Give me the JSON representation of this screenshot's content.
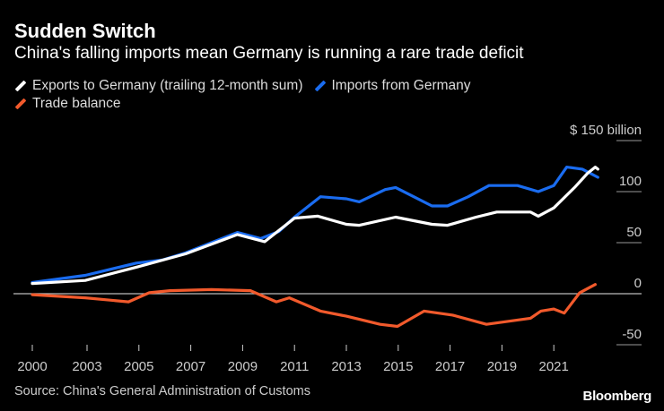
{
  "header": {
    "title": "Sudden Switch",
    "subtitle": "China's falling imports mean Germany is running a rare trade deficit"
  },
  "legend": [
    {
      "label": "Exports to Germany (trailing 12-month sum)",
      "color": "#ffffff"
    },
    {
      "label": "Imports from Germany",
      "color": "#1a6cf0"
    },
    {
      "label": "Trade balance",
      "color": "#f25a2c"
    }
  ],
  "footer": {
    "source": "Source: China's General Administration of Customs",
    "logo": "Bloomberg"
  },
  "chart_data": {
    "type": "line",
    "title": "Sudden Switch",
    "subtitle": "China's falling imports mean Germany is running a rare trade deficit",
    "y_unit_label": "$ 150 billion",
    "y_ticks": [
      150,
      100,
      50,
      0,
      -50
    ],
    "y_tick_labels": [
      "$ 150 billion",
      "100",
      "50",
      "0",
      "-50"
    ],
    "ylim": [
      -50,
      150
    ],
    "x_ticks": [
      2000,
      2003,
      2005,
      2007,
      2009,
      2011,
      2013,
      2015,
      2017,
      2019,
      2021
    ],
    "x_tick_labels": [
      "2000",
      "2003",
      "2005",
      "2007",
      "2009",
      "2011",
      "2013",
      "2015",
      "2017",
      "2019",
      "2021"
    ],
    "y_axis_position": "right",
    "legend_position": "top-left",
    "series": [
      {
        "name": "Exports to Germany (trailing 12-month sum)",
        "color": "#ffffff",
        "x": [
          2000.0,
          2002.9,
          2004.9,
          2006.8,
          2008.8,
          2009.85,
          2011.0,
          2011.9,
          2013.0,
          2013.5,
          2014.9,
          2016.3,
          2016.9,
          2018.0,
          2018.8,
          2020.1,
          2020.4,
          2021.0,
          2021.8,
          2022.3,
          2022.6,
          2022.7
        ],
        "y": [
          10,
          13,
          26,
          39,
          58,
          51,
          74,
          76,
          68,
          67,
          75,
          68,
          67,
          75,
          80,
          80,
          76,
          84,
          104,
          118,
          124,
          122
        ]
      },
      {
        "name": "Imports from Germany",
        "color": "#1a6cf0",
        "x": [
          2000.0,
          2002.9,
          2004.9,
          2005.9,
          2006.8,
          2008.8,
          2009.7,
          2010.4,
          2011.0,
          2012.0,
          2013.0,
          2013.5,
          2014.5,
          2014.9,
          2015.6,
          2016.3,
          2016.9,
          2017.7,
          2018.5,
          2019.6,
          2020.4,
          2021.0,
          2021.5,
          2022.1,
          2022.7
        ],
        "y": [
          11,
          18,
          30,
          33,
          40,
          60,
          54,
          61,
          75,
          95,
          93,
          90,
          102,
          104,
          95,
          86,
          86,
          95,
          106,
          106,
          100,
          106,
          124,
          122,
          114
        ]
      },
      {
        "name": "Trade balance",
        "color": "#f25a2c",
        "x": [
          2000.0,
          2002.9,
          2004.6,
          2005.4,
          2006.2,
          2007.8,
          2009.3,
          2010.3,
          2010.8,
          2012.0,
          2013.0,
          2014.3,
          2014.97,
          2016.0,
          2017.1,
          2018.4,
          2020.1,
          2020.5,
          2021.0,
          2021.4,
          2022.0,
          2022.6
        ],
        "y": [
          -1,
          -4,
          -8,
          1,
          3,
          4,
          3,
          -8,
          -4,
          -17,
          -22,
          -30,
          -32,
          -17,
          -21,
          -30,
          -24,
          -17,
          -15,
          -19,
          1,
          9
        ]
      }
    ]
  }
}
